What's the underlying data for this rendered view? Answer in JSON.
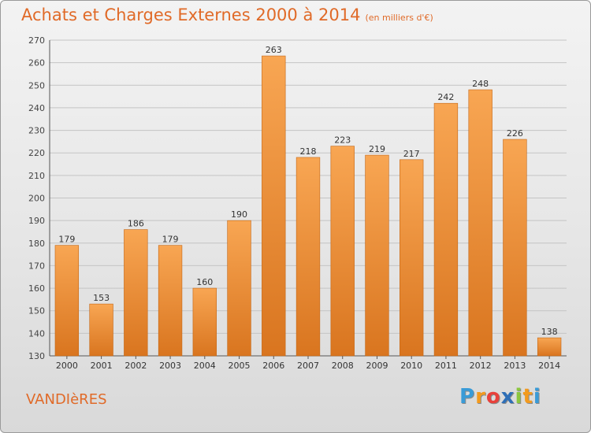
{
  "header": {
    "title": "Achats et Charges Externes 2000 à 2014",
    "subtitle": "(en milliers d'€)"
  },
  "footer": {
    "commune": "VANDIèRES",
    "brand": "Proxiti",
    "brand_letters": [
      {
        "char": "P",
        "color": "#3a9bd7"
      },
      {
        "char": "r",
        "color": "#f39a1e"
      },
      {
        "char": "o",
        "color": "#e8413b"
      },
      {
        "char": "x",
        "color": "#2e6fb7"
      },
      {
        "char": "i",
        "color": "#8cc63f"
      },
      {
        "char": "t",
        "color": "#f39a1e"
      },
      {
        "char": "i",
        "color": "#3a9bd7"
      }
    ]
  },
  "chart_data": {
    "type": "bar",
    "title": "Achats et Charges Externes 2000 à 2014",
    "subtitle": "(en milliers d'€)",
    "categories": [
      "2000",
      "2001",
      "2002",
      "2003",
      "2004",
      "2005",
      "2006",
      "2007",
      "2008",
      "2009",
      "2010",
      "2011",
      "2012",
      "2013",
      "2014"
    ],
    "values": [
      179,
      153,
      186,
      179,
      160,
      190,
      263,
      218,
      223,
      219,
      217,
      242,
      248,
      226,
      138
    ],
    "ylim": [
      130,
      270
    ],
    "yticks": [
      130,
      140,
      150,
      160,
      170,
      180,
      190,
      200,
      210,
      220,
      230,
      240,
      250,
      260,
      270
    ],
    "grid": true,
    "bar_color_top": "#f8a653",
    "bar_color_bottom": "#d9751f"
  }
}
